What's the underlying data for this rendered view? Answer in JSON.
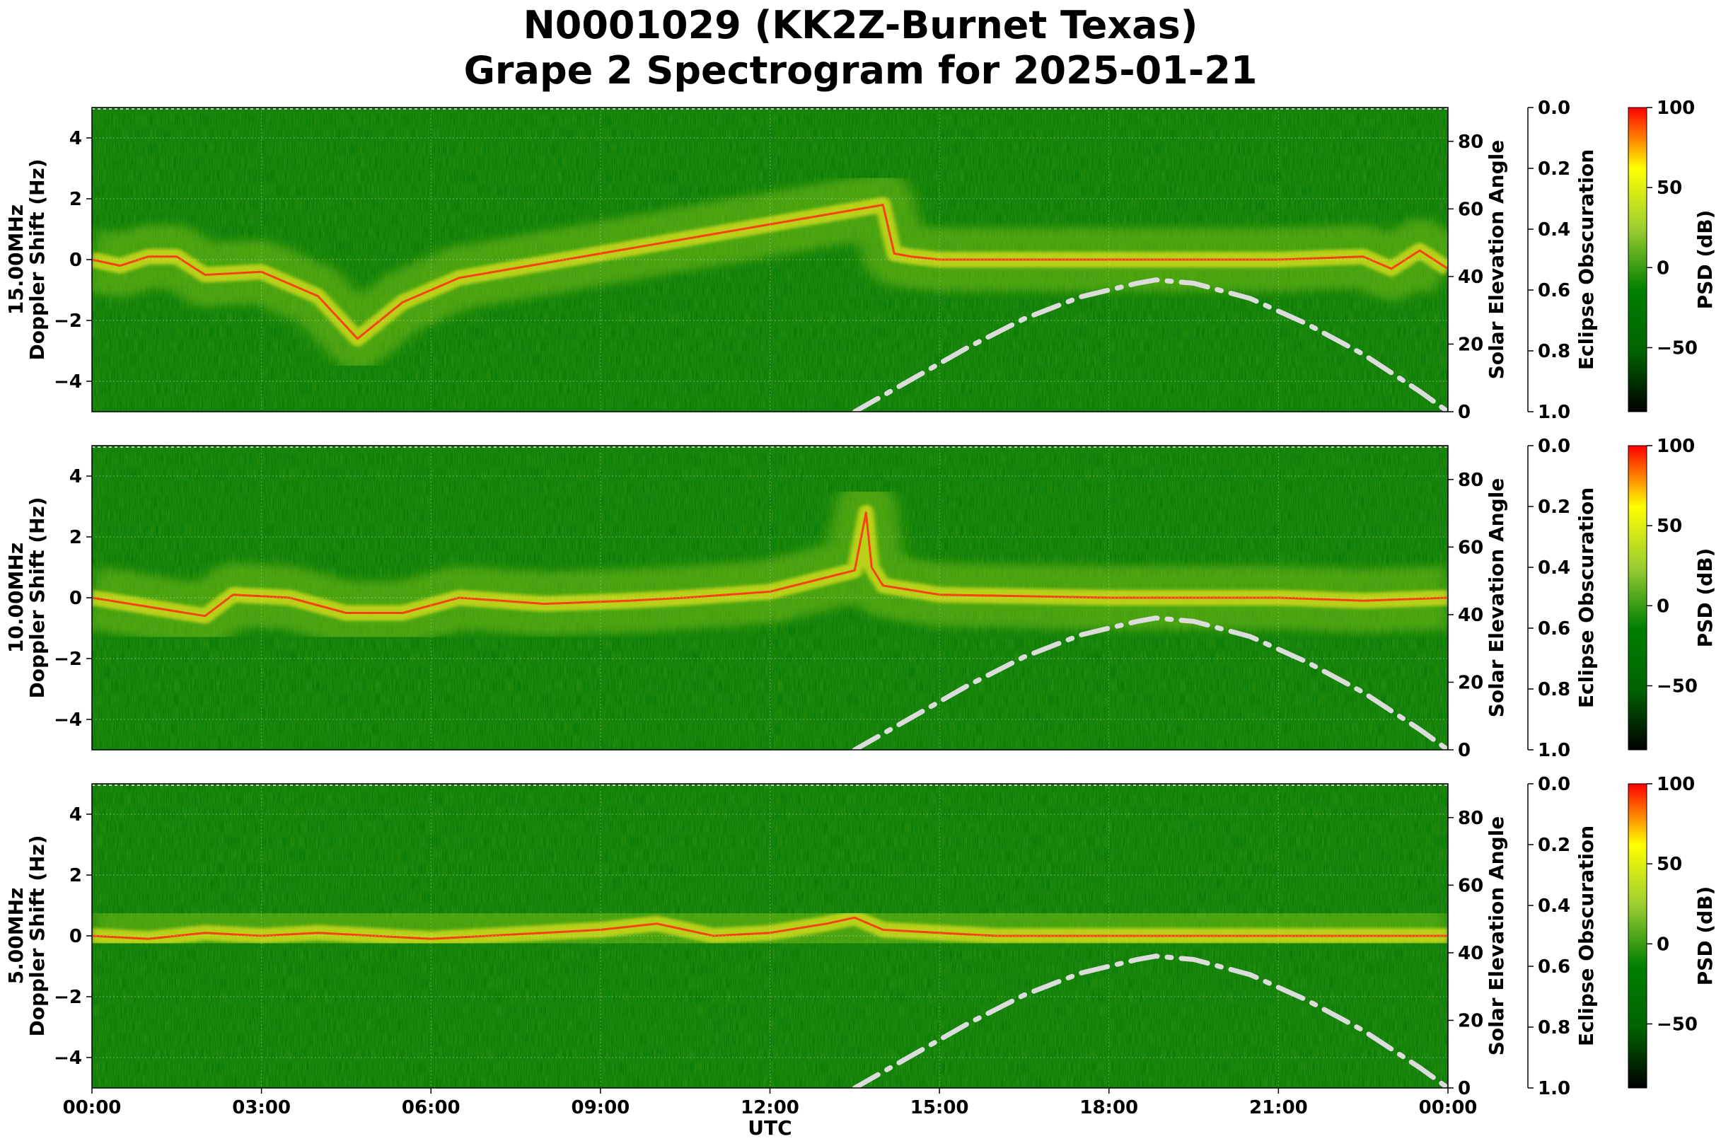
{
  "figure": {
    "title_line1": "N0001029 (KK2Z-Burnet Texas)",
    "title_line2": "Grape 2 Spectrogram for 2025-01-21",
    "xlabel": "UTC",
    "x_ticks": [
      "00:00",
      "03:00",
      "06:00",
      "09:00",
      "12:00",
      "15:00",
      "18:00",
      "21:00",
      "00:00"
    ]
  },
  "colors": {
    "background_green": "#067a06",
    "dark_green": "#045f04",
    "lime": "#8ccc14",
    "yellow": "#f2ea1e",
    "red": "#ff2a10",
    "solar_curve": "#dcdcdc",
    "colormap": [
      "#000000",
      "#006400",
      "#008000",
      "#9acd32",
      "#ffff00",
      "#ff0000"
    ]
  },
  "chart_data": [
    {
      "type": "heatmap",
      "frequency_label": "15.00MHz",
      "ylabel_left": "Doppler Shift (Hz)",
      "ylabel_right": "Solar Elevation Angle",
      "ylabel_eclipse": "Eclipse Obscuration",
      "colorbar_label": "PSD (dB)",
      "xlim": [
        "00:00",
        "24:00"
      ],
      "ylim": [
        -5,
        5
      ],
      "y_ticks": [
        "4",
        "2",
        "0",
        "−2",
        "−4"
      ],
      "solar_ticks": [
        "80",
        "60",
        "40",
        "20",
        "0"
      ],
      "solar_ylim": [
        0,
        90
      ],
      "eclipse_ticks": [
        "0.0",
        "0.2",
        "0.4",
        "0.6",
        "0.8",
        "1.0"
      ],
      "eclipse_ylim": [
        0,
        1
      ],
      "colorbar_ticks": [
        "100",
        "50",
        "0",
        "−50"
      ],
      "colorbar_range": [
        -90,
        100
      ],
      "grid": true,
      "solar_elevation": {
        "x_hours": [
          13.5,
          14.5,
          15.5,
          16.5,
          17.5,
          18.5,
          18.83,
          19.5,
          20.5,
          21.5,
          22.5,
          23.5,
          24.0
        ],
        "y_deg": [
          0,
          9.5,
          19,
          27.5,
          34,
          38,
          39,
          38,
          33.5,
          26,
          17,
          6,
          0
        ]
      },
      "doppler_trace": {
        "x_hours": [
          0,
          0.5,
          1.0,
          1.5,
          2.0,
          3.0,
          4.0,
          4.7,
          5.5,
          6.0,
          6.5,
          14.0,
          14.2,
          14.5,
          15.0,
          18.0,
          21.0,
          22.5,
          23.0,
          23.5,
          24.0
        ],
        "y_hz": [
          0,
          -0.2,
          0.1,
          0.1,
          -0.5,
          -0.4,
          -1.2,
          -2.6,
          -1.4,
          -1.0,
          -0.6,
          1.8,
          0.2,
          0.1,
          0.0,
          0.0,
          0.0,
          0.1,
          -0.3,
          0.3,
          -0.3
        ]
      }
    },
    {
      "type": "heatmap",
      "frequency_label": "10.00MHz",
      "ylabel_left": "Doppler Shift (Hz)",
      "ylabel_right": "Solar Elevation Angle",
      "ylabel_eclipse": "Eclipse Obscuration",
      "colorbar_label": "PSD (dB)",
      "xlim": [
        "00:00",
        "24:00"
      ],
      "ylim": [
        -5,
        5
      ],
      "y_ticks": [
        "4",
        "2",
        "0",
        "−2",
        "−4"
      ],
      "solar_ticks": [
        "80",
        "60",
        "40",
        "20",
        "0"
      ],
      "solar_ylim": [
        0,
        90
      ],
      "eclipse_ticks": [
        "0.0",
        "0.2",
        "0.4",
        "0.6",
        "0.8",
        "1.0"
      ],
      "eclipse_ylim": [
        0,
        1
      ],
      "colorbar_ticks": [
        "100",
        "50",
        "0",
        "−50"
      ],
      "colorbar_range": [
        -90,
        100
      ],
      "grid": true,
      "solar_elevation": {
        "x_hours": [
          13.5,
          14.5,
          15.5,
          16.5,
          17.5,
          18.5,
          18.83,
          19.5,
          20.5,
          21.5,
          22.5,
          23.5,
          24.0
        ],
        "y_deg": [
          0,
          9.5,
          19,
          27.5,
          34,
          38,
          39,
          38,
          33.5,
          26,
          17,
          6,
          0
        ]
      },
      "doppler_trace": {
        "x_hours": [
          0,
          1.0,
          2.0,
          2.5,
          3.5,
          4.5,
          5.5,
          6.5,
          8.0,
          9.5,
          10.5,
          12.0,
          13.5,
          13.7,
          13.8,
          14.0,
          15.0,
          18.0,
          21.0,
          22.5,
          24.0
        ],
        "y_hz": [
          0,
          -0.3,
          -0.6,
          0.1,
          0.0,
          -0.5,
          -0.5,
          0.0,
          -0.2,
          -0.1,
          0.0,
          0.2,
          0.9,
          2.8,
          1.0,
          0.4,
          0.1,
          0.0,
          0.0,
          -0.1,
          0.0
        ]
      }
    },
    {
      "type": "heatmap",
      "frequency_label": "5.00MHz",
      "ylabel_left": "Doppler Shift (Hz)",
      "ylabel_right": "Solar Elevation Angle",
      "ylabel_eclipse": "Eclipse Obscuration",
      "colorbar_label": "PSD (dB)",
      "xlim": [
        "00:00",
        "24:00"
      ],
      "ylim": [
        -5,
        5
      ],
      "y_ticks": [
        "4",
        "2",
        "0",
        "−2",
        "−4"
      ],
      "solar_ticks": [
        "80",
        "60",
        "40",
        "20",
        "0"
      ],
      "solar_ylim": [
        0,
        90
      ],
      "eclipse_ticks": [
        "0.0",
        "0.2",
        "0.4",
        "0.6",
        "0.8",
        "1.0"
      ],
      "eclipse_ylim": [
        0,
        1
      ],
      "colorbar_ticks": [
        "100",
        "50",
        "0",
        "−50"
      ],
      "colorbar_range": [
        -90,
        100
      ],
      "grid": true,
      "solar_elevation": {
        "x_hours": [
          13.5,
          14.5,
          15.5,
          16.5,
          17.5,
          18.5,
          18.83,
          19.5,
          20.5,
          21.5,
          22.5,
          23.5,
          24.0
        ],
        "y_deg": [
          0,
          9.5,
          19,
          27.5,
          34,
          38,
          39,
          38,
          33.5,
          26,
          17,
          6,
          0
        ]
      },
      "doppler_trace": {
        "x_hours": [
          0,
          1.0,
          2.0,
          3.0,
          4.0,
          5.0,
          6.0,
          7.0,
          8.0,
          9.0,
          10.0,
          11.0,
          12.0,
          13.0,
          13.5,
          14.0,
          16.0,
          20.0,
          24.0
        ],
        "y_hz": [
          0,
          -0.1,
          0.1,
          0.0,
          0.1,
          0.0,
          -0.1,
          0.0,
          0.1,
          0.2,
          0.4,
          0.0,
          0.1,
          0.4,
          0.6,
          0.2,
          0.0,
          0.0,
          0.0
        ]
      }
    }
  ]
}
